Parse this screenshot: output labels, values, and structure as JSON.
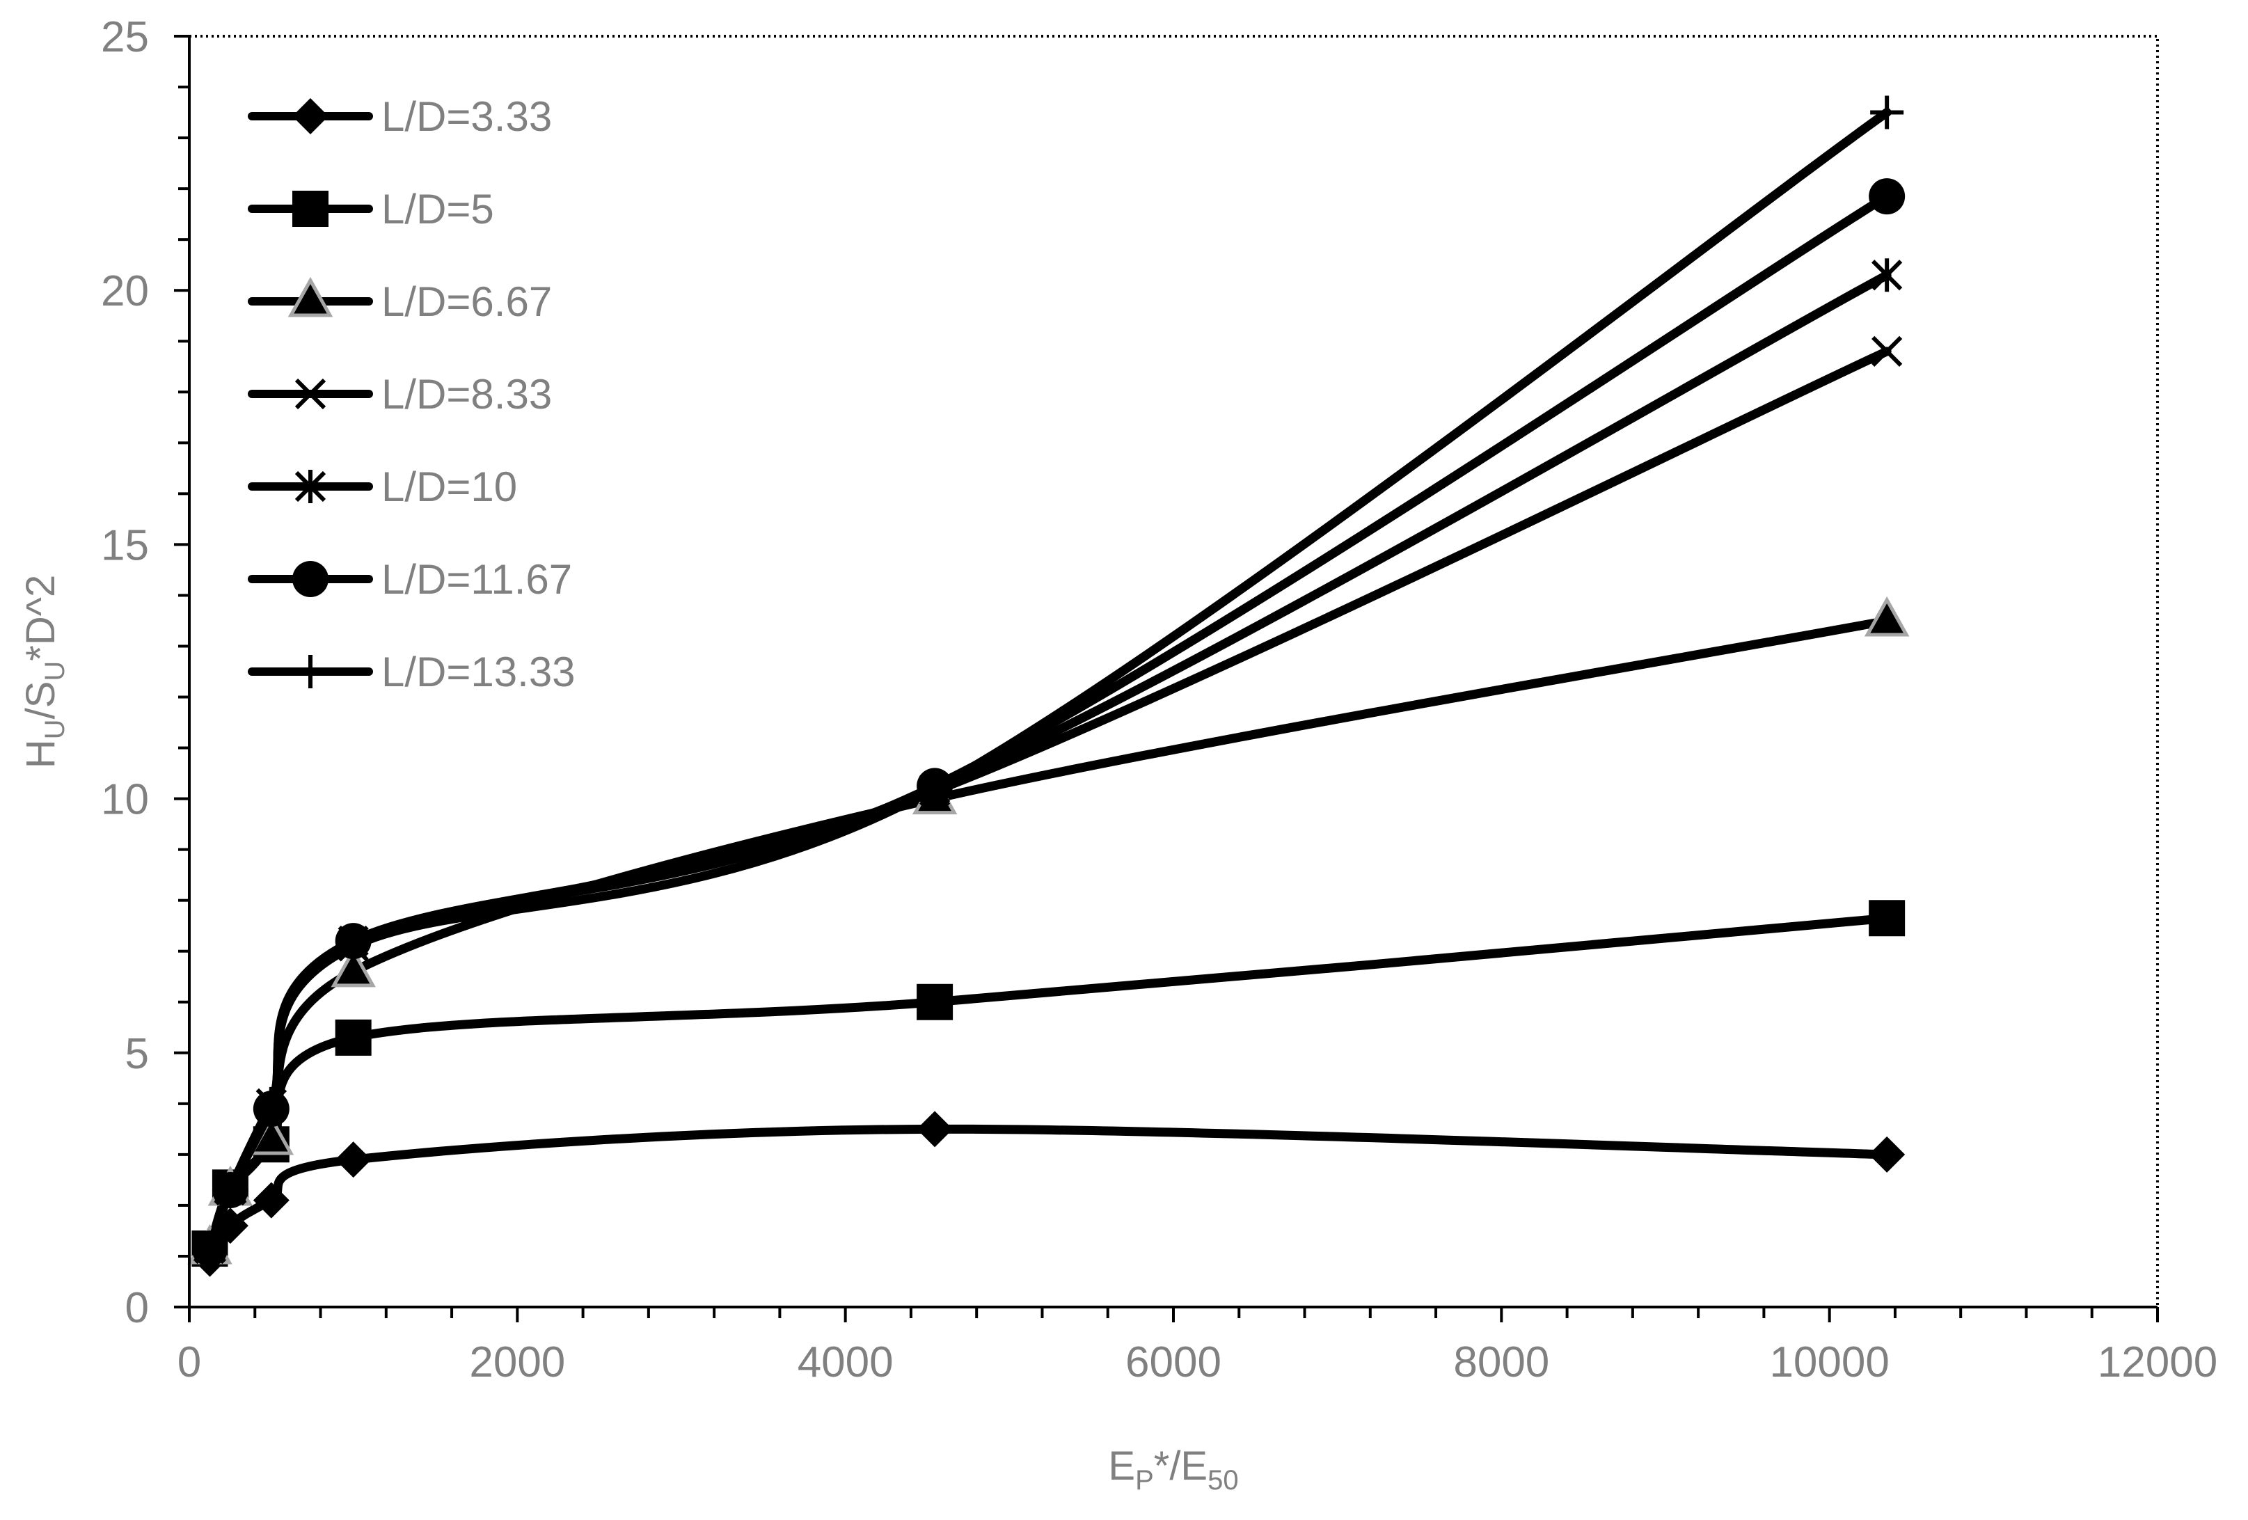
{
  "chart_data": {
    "type": "line",
    "title": "",
    "xlabel": {
      "main": "E",
      "sub1": "P",
      "mid": "*/E",
      "sub2": "50"
    },
    "ylabel": {
      "main": "H",
      "sub1": "U",
      "mid": "/S",
      "sub2": "U",
      "tail": "*D^2"
    },
    "xlim": [
      0,
      12000
    ],
    "ylim": [
      0,
      25
    ],
    "x_ticks": [
      0,
      2000,
      4000,
      6000,
      8000,
      10000,
      12000
    ],
    "x_tick_labels": [
      "0",
      "2000",
      "4000",
      "6000",
      "8000",
      "10000",
      "12000"
    ],
    "y_ticks": [
      0,
      5,
      10,
      15,
      20,
      25
    ],
    "y_tick_labels": [
      "0",
      "5",
      "10",
      "15",
      "20",
      "25"
    ],
    "x_minor_step": 400,
    "y_minor_step": 1,
    "grid": false,
    "legend_position": "top-left",
    "smooth": true,
    "x": [
      125,
      250,
      500,
      1000,
      4545,
      10350
    ],
    "series": [
      {
        "name": "L/D=3.33",
        "marker": "diamond",
        "values": [
          0.95,
          1.6,
          2.1,
          2.9,
          3.5,
          3.0
        ]
      },
      {
        "name": "L/D=5",
        "marker": "square",
        "values": [
          1.15,
          2.35,
          3.2,
          5.3,
          6.0,
          7.65
        ]
      },
      {
        "name": "L/D=6.67",
        "marker": "triangle",
        "values": [
          1.15,
          2.3,
          3.3,
          6.6,
          10.0,
          13.5
        ]
      },
      {
        "name": "L/D=8.33",
        "marker": "x",
        "values": [
          1.15,
          2.3,
          4.0,
          7.1,
          10.15,
          18.8
        ]
      },
      {
        "name": "L/D=10",
        "marker": "asterisk",
        "values": [
          1.15,
          2.3,
          4.0,
          7.2,
          10.2,
          20.3
        ]
      },
      {
        "name": "L/D=11.67",
        "marker": "circle",
        "values": [
          1.15,
          2.3,
          3.9,
          7.2,
          10.25,
          21.85
        ]
      },
      {
        "name": "L/D=13.33",
        "marker": "plus",
        "values": [
          1.15,
          2.3,
          3.9,
          7.1,
          10.2,
          23.5
        ]
      }
    ],
    "colors": {
      "line": "#000000",
      "axis": "#000000",
      "text": "#808080",
      "triangle_outline": "#a6a6a6"
    }
  }
}
